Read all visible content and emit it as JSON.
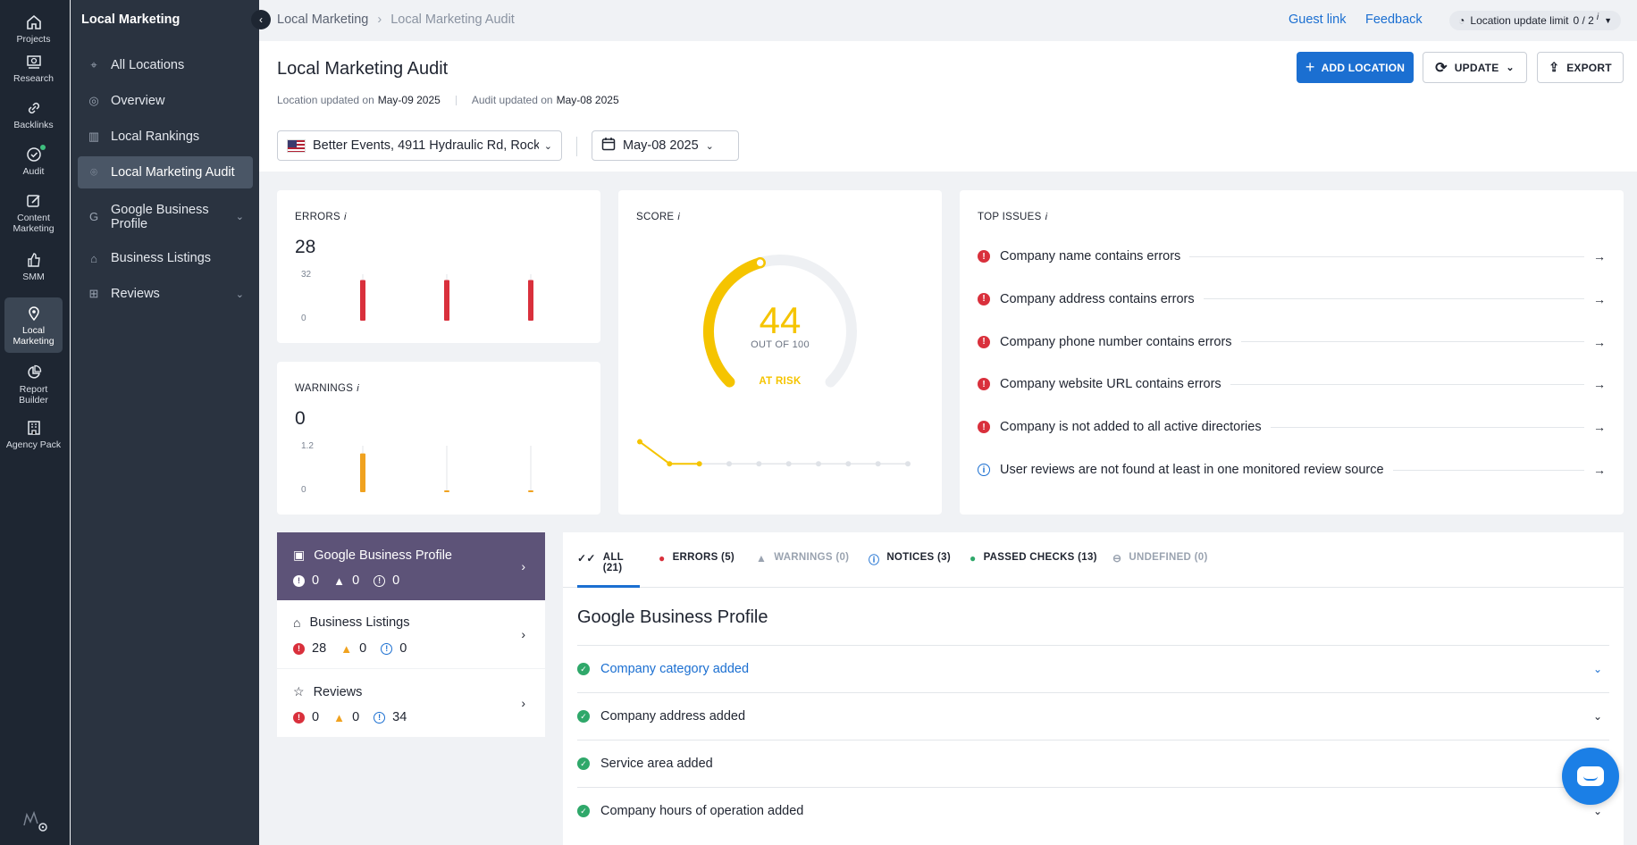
{
  "rail": [
    {
      "label": "Projects",
      "icon": "home-icon"
    },
    {
      "label": "Research",
      "icon": "research-icon"
    },
    {
      "label": "Backlinks",
      "icon": "link-icon"
    },
    {
      "label": "Audit",
      "icon": "audit-icon"
    },
    {
      "label": "Content Marketing",
      "icon": "edit-icon"
    },
    {
      "label": "SMM",
      "icon": "thumb-up-icon"
    },
    {
      "label": "Local Marketing",
      "icon": "location-pin-icon"
    },
    {
      "label": "Report Builder",
      "icon": "pie-chart-icon"
    },
    {
      "label": "Agency Pack",
      "icon": "building-icon"
    }
  ],
  "sidebar": {
    "title": "Local Marketing",
    "items": [
      {
        "label": "All Locations"
      },
      {
        "label": "Overview"
      },
      {
        "label": "Local Rankings"
      },
      {
        "label": "Local Marketing Audit"
      },
      {
        "label": "Google Business Profile"
      },
      {
        "label": "Business Listings"
      },
      {
        "label": "Reviews"
      }
    ]
  },
  "topbar": {
    "crumb1": "Local Marketing",
    "crumb2": "Local Marketing Audit",
    "guest_link": "Guest link",
    "feedback": "Feedback",
    "limit_label": "Location update limit",
    "limit_value": "0 / 2"
  },
  "header": {
    "title": "Local Marketing Audit",
    "location_updated_label": "Location updated on",
    "location_updated_value": "May-09 2025",
    "audit_updated_label": "Audit updated on",
    "audit_updated_value": "May-08 2025",
    "add_location": "ADD LOCATION",
    "update": "UPDATE",
    "export": "EXPORT",
    "location_select": "Better Events, 4911 Hydraulic Rd, Rock...",
    "date_select": "May-08 2025"
  },
  "errors_card": {
    "label": "ERRORS",
    "value": "28",
    "axis_max": "32",
    "axis_min": "0",
    "bars": [
      28,
      28,
      28
    ],
    "axis_top": 32
  },
  "warnings_card": {
    "label": "WARNINGS",
    "value": "0",
    "axis_max": "1.2",
    "axis_min": "0",
    "bars": [
      1,
      0,
      0
    ],
    "axis_top": 1.2
  },
  "score_card": {
    "label": "SCORE",
    "value": "44",
    "out_of": "OUT OF 100",
    "status": "AT RISK",
    "score_fraction": 0.44,
    "history": [
      44,
      30,
      30,
      30,
      30,
      30,
      30,
      30,
      30,
      30
    ]
  },
  "top_issues": {
    "label": "TOP ISSUES",
    "items": [
      {
        "text": "Company name contains errors",
        "type": "error"
      },
      {
        "text": "Company address contains errors",
        "type": "error"
      },
      {
        "text": "Company phone number contains errors",
        "type": "error"
      },
      {
        "text": "Company website URL contains errors",
        "type": "error"
      },
      {
        "text": "Company is not added to all active directories",
        "type": "error"
      },
      {
        "text": "User reviews are not found at least in one monitored review source",
        "type": "info"
      }
    ]
  },
  "categories": [
    {
      "title": "Google Business Profile",
      "errors": "0",
      "warnings": "0",
      "notices": "0"
    },
    {
      "title": "Business Listings",
      "errors": "28",
      "warnings": "0",
      "notices": "0"
    },
    {
      "title": "Reviews",
      "errors": "0",
      "warnings": "0",
      "notices": "34"
    }
  ],
  "tabs": [
    {
      "label": "ALL (21)"
    },
    {
      "label": "ERRORS (5)"
    },
    {
      "label": "WARNINGS (0)"
    },
    {
      "label": "NOTICES (3)"
    },
    {
      "label": "PASSED CHECKS (13)"
    },
    {
      "label": "UNDEFINED (0)"
    }
  ],
  "detail": {
    "title": "Google Business Profile",
    "checks": [
      {
        "text": "Company category added"
      },
      {
        "text": "Company address added"
      },
      {
        "text": "Service area added"
      },
      {
        "text": "Company hours of operation added"
      }
    ]
  },
  "colors": {
    "accent": "#1b6fd1",
    "error": "#d9303c",
    "warning": "#f0a21f",
    "score": "#f5c400",
    "passed": "#2fa86a",
    "active_category": "#5d5378"
  }
}
